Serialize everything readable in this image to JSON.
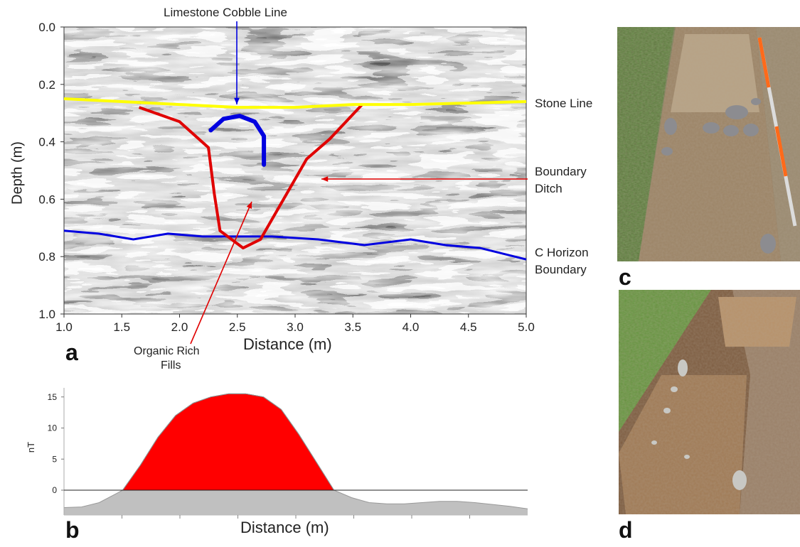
{
  "panels": {
    "a": "a",
    "b": "b",
    "c": "c",
    "d": "d"
  },
  "gpr": {
    "type": "radargram",
    "xlabel": "Distance (m)",
    "ylabel": "Depth (m)",
    "xlim": [
      1.0,
      5.0
    ],
    "ylim": [
      0.0,
      1.0
    ],
    "x_ticks": [
      "1.0",
      "1.5",
      "2.0",
      "2.5",
      "3.0",
      "3.5",
      "4.0",
      "4.5",
      "5.0"
    ],
    "y_ticks": [
      "0.0",
      "0.2",
      "0.4",
      "0.6",
      "0.8",
      "1.0"
    ],
    "annotations": {
      "cobble": "Limestone Cobble Line",
      "stone": "Stone Line",
      "ditch_line1": "Boundary",
      "ditch_line2": "Ditch",
      "horizon_line1": "C Horizon",
      "horizon_line2": "Boundary",
      "fills_line1": "Organic Rich",
      "fills_line2": "Fills"
    },
    "colors": {
      "stone_line": "#ffff00",
      "ditch": "#e00000",
      "horizon": "#0000e0",
      "cobble": "#0000e0"
    },
    "stone_line": [
      [
        1.0,
        0.25
      ],
      [
        1.5,
        0.26
      ],
      [
        2.0,
        0.27
      ],
      [
        2.5,
        0.28
      ],
      [
        3.0,
        0.28
      ],
      [
        3.5,
        0.27
      ],
      [
        4.0,
        0.27
      ],
      [
        4.5,
        0.265
      ],
      [
        5.0,
        0.26
      ]
    ],
    "horizon_line": [
      [
        1.0,
        0.71
      ],
      [
        1.3,
        0.72
      ],
      [
        1.6,
        0.74
      ],
      [
        1.9,
        0.72
      ],
      [
        2.2,
        0.73
      ],
      [
        2.5,
        0.73
      ],
      [
        2.8,
        0.73
      ],
      [
        3.2,
        0.74
      ],
      [
        3.6,
        0.76
      ],
      [
        4.0,
        0.74
      ],
      [
        4.3,
        0.76
      ],
      [
        4.6,
        0.77
      ],
      [
        5.0,
        0.81
      ]
    ],
    "ditch_profile": [
      [
        1.65,
        0.28
      ],
      [
        2.0,
        0.33
      ],
      [
        2.25,
        0.42
      ],
      [
        2.3,
        0.58
      ],
      [
        2.35,
        0.71
      ],
      [
        2.55,
        0.77
      ],
      [
        2.7,
        0.74
      ],
      [
        2.9,
        0.6
      ],
      [
        3.1,
        0.46
      ],
      [
        3.3,
        0.39
      ],
      [
        3.58,
        0.27
      ]
    ],
    "cobble_arc": [
      [
        2.27,
        0.36
      ],
      [
        2.38,
        0.32
      ],
      [
        2.52,
        0.31
      ],
      [
        2.65,
        0.33
      ],
      [
        2.73,
        0.38
      ],
      [
        2.73,
        0.48
      ]
    ]
  },
  "chart_data": {
    "type": "area",
    "ylabel": "nT",
    "xlabel": "Distance (m)",
    "ylim": [
      -4,
      16
    ],
    "y_ticks": [
      "0",
      "5",
      "10",
      "15"
    ],
    "x": [
      0,
      0.3,
      0.6,
      0.9,
      1.0,
      1.3,
      1.6,
      1.9,
      2.2,
      2.5,
      2.8,
      3.1,
      3.4,
      3.7,
      4.0,
      4.3,
      4.6,
      4.9,
      5.2,
      5.5,
      5.8,
      6.1,
      6.4,
      6.7,
      7.0,
      7.3,
      7.6,
      7.9
    ],
    "values": [
      -2.8,
      -2.7,
      -2.0,
      -0.5,
      0.0,
      4.0,
      8.5,
      12.0,
      14.0,
      15.0,
      15.5,
      15.5,
      15.0,
      13.0,
      9.0,
      4.5,
      0.0,
      -1.2,
      -2.0,
      -2.2,
      -2.2,
      -2.0,
      -1.8,
      -1.8,
      -2.0,
      -2.3,
      -2.6,
      -3.0
    ],
    "colors": {
      "positive": "#ff0000",
      "negative": "#c0c0c0"
    }
  }
}
